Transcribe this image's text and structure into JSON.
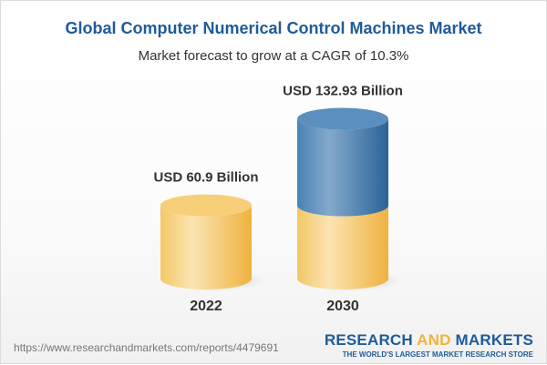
{
  "title": "Global Computer Numerical Control Machines Market",
  "subtitle": "Market forecast to grow at a CAGR of 10.3%",
  "chart_data": {
    "type": "bar",
    "style": "3d-cylinder",
    "categories": [
      "2022",
      "2030"
    ],
    "values": [
      60.9,
      132.93
    ],
    "data_labels": [
      "USD 60.9 Billion",
      "USD 132.93 Billion"
    ],
    "unit": "USD Billion",
    "colors": {
      "base": "#f3c562",
      "growth": "#3d78ab"
    }
  },
  "footer": {
    "url": "https://www.researchandmarkets.com/reports/4479691",
    "logo_part1": "RESEARCH ",
    "logo_part2": "AND",
    "logo_part3": " MARKETS",
    "logo_tagline": "THE WORLD'S LARGEST MARKET RESEARCH STORE"
  }
}
